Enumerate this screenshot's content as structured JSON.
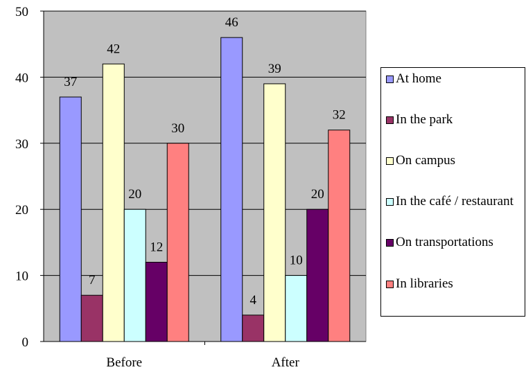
{
  "chart_data": {
    "type": "bar",
    "categories": [
      "Before",
      "After"
    ],
    "series": [
      {
        "name": "At home",
        "values": [
          37,
          46
        ],
        "color": "#9999ff"
      },
      {
        "name": "In the park",
        "values": [
          7,
          4
        ],
        "color": "#993366"
      },
      {
        "name": "On campus",
        "values": [
          42,
          39
        ],
        "color": "#ffffcc"
      },
      {
        "name": "In the café / restaurant",
        "values": [
          20,
          10
        ],
        "color": "#ccffff"
      },
      {
        "name": "On transportations",
        "values": [
          12,
          20
        ],
        "color": "#660066"
      },
      {
        "name": "In libraries",
        "values": [
          30,
          32
        ],
        "color": "#ff8080"
      }
    ],
    "ylim": [
      0,
      50
    ],
    "yticks": [
      0,
      10,
      20,
      30,
      40,
      50
    ],
    "grid": true,
    "plot_background": "#c0c0c0",
    "legend_position": "right",
    "data_labels": true
  }
}
